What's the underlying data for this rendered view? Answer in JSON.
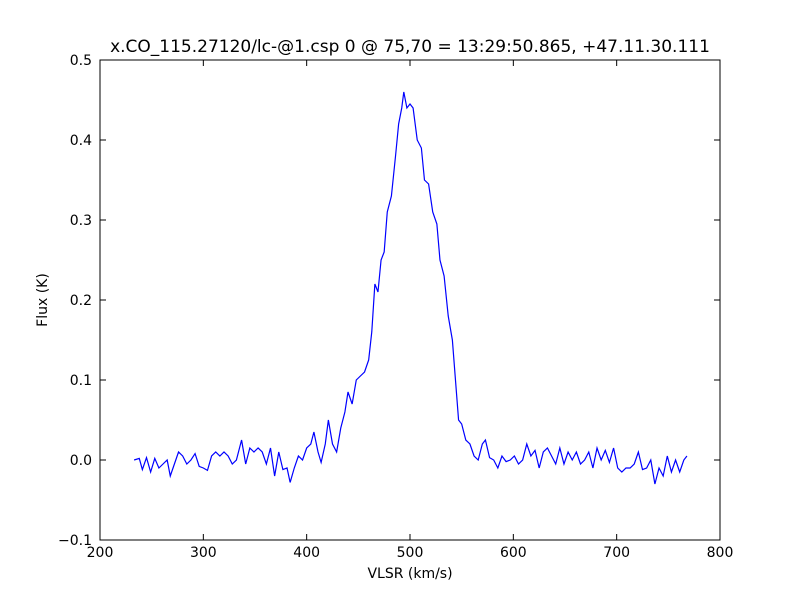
{
  "chart_data": {
    "type": "line",
    "title": "x.CO_115.27120/lc-@1.csp 0 @ 75,70 = 13:29:50.865, +47.11.30.111",
    "x_label": "VLSR (km/s)",
    "y_label": "Flux (K)",
    "color": "#0000ff",
    "xlim": [
      200,
      800
    ],
    "ylim": [
      -0.1,
      0.5
    ],
    "xticks": [
      200,
      300,
      400,
      500,
      600,
      700,
      800
    ],
    "yticks": [
      {
        "value": -0.1,
        "label": "−0.1"
      },
      {
        "value": 0,
        "label": "0.0"
      },
      0.1,
      0.2,
      0.3,
      0.4,
      0.5
    ],
    "grid": false,
    "x": [
      233,
      238,
      241,
      245,
      249,
      253,
      257,
      261,
      265,
      268,
      272,
      276,
      280,
      284,
      288,
      292,
      296,
      300,
      304,
      308,
      312,
      316,
      320,
      324,
      328,
      332,
      337,
      341,
      345,
      349,
      353,
      357,
      361,
      365,
      369,
      373,
      377,
      381,
      384,
      388,
      392,
      396,
      400,
      404,
      407,
      411,
      414,
      418,
      421,
      425,
      429,
      433,
      437,
      440,
      444,
      448,
      452,
      456,
      460,
      463,
      466,
      469,
      472,
      475,
      478,
      482,
      486,
      489,
      492,
      494,
      497,
      500,
      503,
      507,
      511,
      514,
      518,
      522,
      526,
      529,
      533,
      537,
      541,
      544,
      547,
      550,
      554,
      558,
      562,
      566,
      570,
      573,
      577,
      581,
      585,
      589,
      593,
      597,
      601,
      605,
      609,
      613,
      617,
      621,
      625,
      629,
      633,
      637,
      641,
      645,
      649,
      653,
      657,
      661,
      665,
      669,
      673,
      677,
      681,
      685,
      689,
      693,
      697,
      701,
      705,
      709,
      713,
      717,
      721,
      725,
      729,
      733,
      737,
      741,
      745,
      749,
      753,
      757,
      761,
      765,
      768
    ],
    "values": [
      0.0,
      0.002,
      -0.012,
      0.003,
      -0.015,
      0.002,
      -0.01,
      -0.005,
      0.0,
      -0.02,
      -0.005,
      0.01,
      0.005,
      -0.005,
      0.0,
      0.008,
      -0.008,
      -0.01,
      -0.013,
      0.005,
      0.01,
      0.005,
      0.01,
      0.005,
      -0.005,
      0.0,
      0.025,
      -0.005,
      0.015,
      0.01,
      0.015,
      0.01,
      -0.005,
      0.015,
      -0.02,
      0.01,
      -0.012,
      -0.01,
      -0.028,
      -0.01,
      0.005,
      0.0,
      0.015,
      0.02,
      0.035,
      0.01,
      -0.003,
      0.02,
      0.05,
      0.02,
      0.01,
      0.04,
      0.06,
      0.085,
      0.07,
      0.1,
      0.105,
      0.11,
      0.125,
      0.16,
      0.22,
      0.21,
      0.25,
      0.26,
      0.31,
      0.33,
      0.38,
      0.42,
      0.44,
      0.46,
      0.44,
      0.445,
      0.44,
      0.4,
      0.39,
      0.35,
      0.345,
      0.31,
      0.295,
      0.25,
      0.23,
      0.18,
      0.15,
      0.1,
      0.05,
      0.045,
      0.025,
      0.02,
      0.005,
      0.0,
      0.02,
      0.025,
      0.003,
      0.0,
      -0.01,
      0.005,
      -0.002,
      0.0,
      0.005,
      -0.005,
      0.0,
      0.02,
      0.005,
      0.012,
      -0.01,
      0.01,
      0.015,
      0.005,
      -0.005,
      0.015,
      -0.005,
      0.01,
      0.0,
      0.01,
      -0.005,
      0.0,
      0.01,
      -0.01,
      0.015,
      0.0,
      0.012,
      -0.003,
      0.015,
      -0.01,
      -0.015,
      -0.01,
      -0.01,
      -0.005,
      0.01,
      -0.012,
      -0.01,
      0.0,
      -0.03,
      -0.01,
      -0.02,
      0.005,
      -0.015,
      0.0,
      -0.015,
      0.0,
      0.005
    ]
  }
}
